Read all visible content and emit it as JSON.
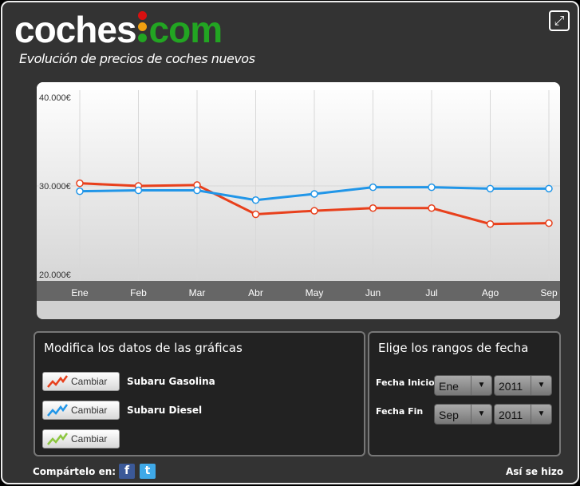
{
  "header": {
    "logo_text_1": "coches",
    "logo_text_2": "com",
    "subtitle": "Evolución de precios de coches nuevos",
    "expand_icon": "expand-icon"
  },
  "chart_data": {
    "type": "line",
    "categories": [
      "Ene",
      "Feb",
      "Mar",
      "Abr",
      "May",
      "Jun",
      "Jul",
      "Ago",
      "Sep"
    ],
    "y_ticks": [
      "40.000€",
      "30.000€",
      "20.000€"
    ],
    "ylim": [
      20000,
      40000
    ],
    "grid": true,
    "series": [
      {
        "color": "#e8401c",
        "values": [
          30300,
          30000,
          30100,
          26800,
          27200,
          27500,
          27500,
          25700,
          25800
        ]
      },
      {
        "color": "#2196e8",
        "values": [
          29400,
          29500,
          29500,
          28400,
          29100,
          29850,
          29850,
          29700,
          29700
        ]
      }
    ]
  },
  "modify": {
    "title": "Modifica los datos de las gráficas",
    "rows": [
      {
        "button": "Cambiar",
        "label": "Subaru Gasolina",
        "color": "#e8401c"
      },
      {
        "button": "Cambiar",
        "label": "Subaru Diesel",
        "color": "#2196e8"
      },
      {
        "button": "Cambiar",
        "label": "",
        "color": "#8cc63f"
      }
    ]
  },
  "dates": {
    "title": "Elige los rangos de fecha",
    "start_label": "Fecha Inicio",
    "start_month": "Ene",
    "start_year": "2011",
    "end_label": "Fecha Fin",
    "end_month": "Sep",
    "end_year": "2011"
  },
  "footer": {
    "share_label": "Compártelo en:",
    "facebook": "f",
    "twitter": "t",
    "howto": "Así se hizo"
  }
}
